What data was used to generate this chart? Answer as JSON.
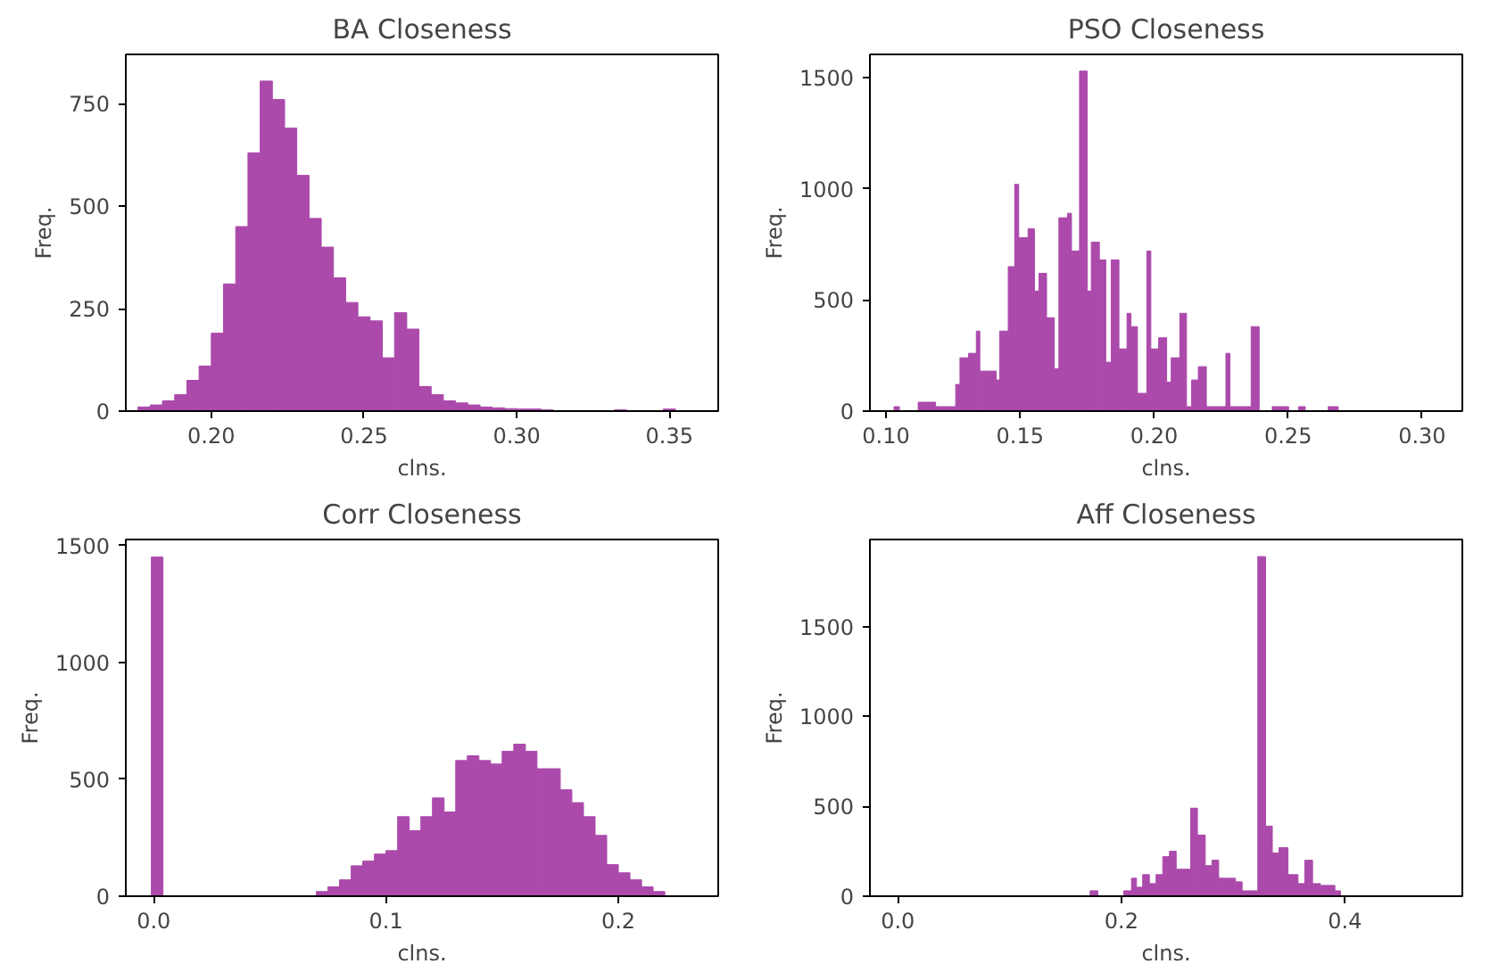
{
  "chart_data": [
    {
      "type": "histogram",
      "title": "BA Closeness",
      "xlabel": "clns.",
      "ylabel": "Freq.",
      "color": "#ab4aab",
      "bins": [
        0.176,
        0.18,
        0.184,
        0.188,
        0.192,
        0.196,
        0.2,
        0.204,
        0.208,
        0.212,
        0.216,
        0.22,
        0.224,
        0.228,
        0.232,
        0.236,
        0.24,
        0.244,
        0.248,
        0.252,
        0.256,
        0.26,
        0.264,
        0.268,
        0.272,
        0.276,
        0.28,
        0.284,
        0.288,
        0.292,
        0.296,
        0.3,
        0.304,
        0.308,
        0.312,
        0.316,
        0.32,
        0.324,
        0.328,
        0.332,
        0.336,
        0.34,
        0.344,
        0.348,
        0.352
      ],
      "values": [
        10,
        15,
        25,
        40,
        75,
        110,
        190,
        310,
        450,
        630,
        805,
        760,
        690,
        575,
        470,
        400,
        325,
        265,
        230,
        220,
        130,
        240,
        200,
        60,
        40,
        25,
        20,
        15,
        10,
        8,
        6,
        5,
        5,
        3,
        0,
        0,
        0,
        0,
        0,
        3,
        0,
        0,
        0,
        5
      ],
      "xlim": [
        0.172,
        0.366
      ],
      "ylim": [
        0,
        870
      ],
      "xticks": [
        {
          "value": 0.2,
          "label": "0.20"
        },
        {
          "value": 0.25,
          "label": "0.25"
        },
        {
          "value": 0.3,
          "label": "0.30"
        },
        {
          "value": 0.35,
          "label": "0.35"
        }
      ],
      "yticks": [
        0,
        250,
        500,
        750
      ]
    },
    {
      "type": "histogram",
      "title": "PSO Closeness",
      "xlabel": "clns.",
      "ylabel": "Freq.",
      "color": "#ab4aab",
      "bins": [
        0.103,
        0.105,
        0.112,
        0.1185,
        0.126,
        0.1276,
        0.1308,
        0.1337,
        0.135,
        0.1411,
        0.1424,
        0.1456,
        0.148,
        0.1495,
        0.153,
        0.1554,
        0.1571,
        0.1599,
        0.1628,
        0.1645,
        0.1677,
        0.1692,
        0.1722,
        0.1751,
        0.1766,
        0.1796,
        0.182,
        0.184,
        0.1869,
        0.1899,
        0.1914,
        0.1938,
        0.1973,
        0.1988,
        0.2017,
        0.2047,
        0.2064,
        0.2096,
        0.2121,
        0.214,
        0.2165,
        0.2195,
        0.2268,
        0.2283,
        0.2362,
        0.2392,
        0.2441,
        0.2502,
        0.2539,
        0.2564,
        0.265,
        0.2687
      ],
      "values": [
        20,
        0,
        40,
        20,
        120,
        240,
        260,
        360,
        180,
        140,
        360,
        650,
        1020,
        780,
        820,
        540,
        620,
        420,
        190,
        870,
        890,
        720,
        1530,
        540,
        760,
        680,
        220,
        680,
        280,
        440,
        380,
        80,
        720,
        280,
        330,
        130,
        240,
        440,
        20,
        140,
        200,
        20,
        260,
        20,
        380,
        0,
        20,
        0,
        20,
        0,
        20
      ],
      "xlim": [
        0.094,
        0.315
      ],
      "ylim": [
        0,
        1605
      ],
      "xticks": [
        {
          "value": 0.1,
          "label": "0.10"
        },
        {
          "value": 0.15,
          "label": "0.15"
        },
        {
          "value": 0.2,
          "label": "0.20"
        },
        {
          "value": 0.25,
          "label": "0.25"
        },
        {
          "value": 0.3,
          "label": "0.30"
        }
      ],
      "yticks": [
        0,
        500,
        1000,
        1500
      ]
    },
    {
      "type": "histogram",
      "title": "Corr Closeness",
      "xlabel": "clns.",
      "ylabel": "Freq.",
      "color": "#ab4aab",
      "bins": [
        -0.001,
        0.004,
        0.07,
        0.075,
        0.08,
        0.085,
        0.09,
        0.095,
        0.1,
        0.105,
        0.11,
        0.115,
        0.12,
        0.125,
        0.13,
        0.135,
        0.14,
        0.145,
        0.15,
        0.155,
        0.16,
        0.165,
        0.17,
        0.175,
        0.18,
        0.185,
        0.19,
        0.195,
        0.2,
        0.205,
        0.21,
        0.215,
        0.22
      ],
      "values": [
        1450,
        0,
        20,
        40,
        70,
        130,
        150,
        180,
        195,
        340,
        280,
        340,
        420,
        360,
        580,
        600,
        580,
        565,
        620,
        650,
        620,
        545,
        545,
        455,
        400,
        340,
        260,
        135,
        100,
        70,
        40,
        20
      ],
      "xlim": [
        -0.012,
        0.243
      ],
      "ylim": [
        0,
        1525
      ],
      "xticks": [
        {
          "value": 0,
          "label": "0.0"
        },
        {
          "value": 0.1,
          "label": "0.1"
        },
        {
          "value": 0.2,
          "label": "0.2"
        }
      ],
      "yticks": [
        0,
        500,
        1000,
        1500
      ]
    },
    {
      "type": "histogram",
      "title": "Aff Closeness",
      "xlabel": "clns.",
      "ylabel": "Freq.",
      "color": "#ab4aab",
      "bins": [
        0.172,
        0.179,
        0.202,
        0.209,
        0.2135,
        0.219,
        0.225,
        0.231,
        0.237,
        0.243,
        0.249,
        0.262,
        0.268,
        0.275,
        0.281,
        0.287,
        0.291,
        0.302,
        0.308,
        0.312,
        0.322,
        0.329,
        0.335,
        0.341,
        0.349,
        0.358,
        0.364,
        0.371,
        0.378,
        0.391,
        0.396
      ],
      "values": [
        30,
        0,
        30,
        100,
        50,
        120,
        70,
        120,
        220,
        250,
        150,
        490,
        340,
        170,
        200,
        100,
        100,
        80,
        30,
        30,
        1890,
        390,
        240,
        270,
        120,
        70,
        200,
        70,
        60,
        30
      ],
      "xlim": [
        -0.025,
        0.505
      ],
      "ylim": [
        0,
        1985
      ],
      "xticks": [
        {
          "value": 0,
          "label": "0.0"
        },
        {
          "value": 0.2,
          "label": "0.2"
        },
        {
          "value": 0.4,
          "label": "0.4"
        }
      ],
      "yticks": [
        0,
        500,
        1000,
        1500
      ]
    }
  ]
}
